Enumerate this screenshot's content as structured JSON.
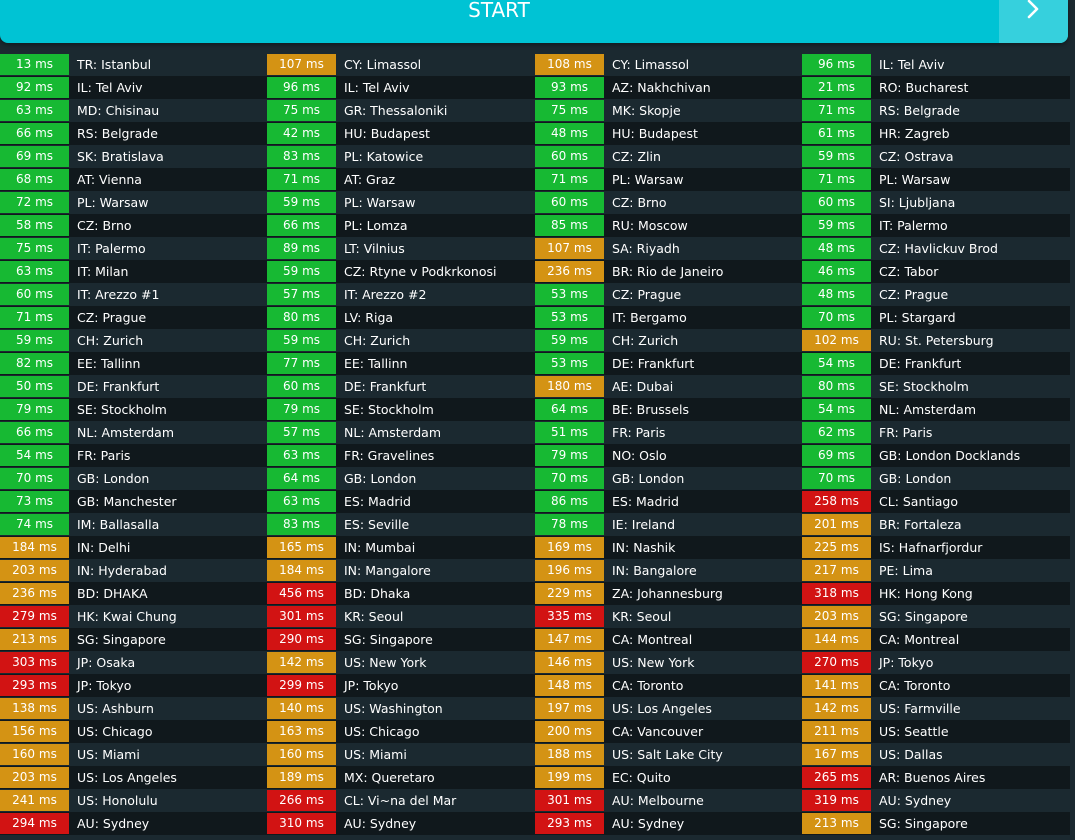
{
  "header": {
    "start_label": "START",
    "next_icon": "chevron-right-icon"
  },
  "colors": {
    "good": "#17b933",
    "medium": "#d49314",
    "bad": "#d21313",
    "accent": "#00c3d4"
  },
  "columns": [
    [
      {
        "ms": "13 ms",
        "loc": "TR: Istanbul",
        "s": "g"
      },
      {
        "ms": "92 ms",
        "loc": "IL: Tel Aviv",
        "s": "g"
      },
      {
        "ms": "63 ms",
        "loc": "MD: Chisinau",
        "s": "g"
      },
      {
        "ms": "66 ms",
        "loc": "RS: Belgrade",
        "s": "g"
      },
      {
        "ms": "69 ms",
        "loc": "SK: Bratislava",
        "s": "g"
      },
      {
        "ms": "68 ms",
        "loc": "AT: Vienna",
        "s": "g"
      },
      {
        "ms": "72 ms",
        "loc": "PL: Warsaw",
        "s": "g"
      },
      {
        "ms": "58 ms",
        "loc": "CZ: Brno",
        "s": "g"
      },
      {
        "ms": "75 ms",
        "loc": "IT: Palermo",
        "s": "g"
      },
      {
        "ms": "63 ms",
        "loc": "IT: Milan",
        "s": "g"
      },
      {
        "ms": "60 ms",
        "loc": "IT: Arezzo #1",
        "s": "g"
      },
      {
        "ms": "71 ms",
        "loc": "CZ: Prague",
        "s": "g"
      },
      {
        "ms": "59 ms",
        "loc": "CH: Zurich",
        "s": "g"
      },
      {
        "ms": "82 ms",
        "loc": "EE: Tallinn",
        "s": "g"
      },
      {
        "ms": "50 ms",
        "loc": "DE: Frankfurt",
        "s": "g"
      },
      {
        "ms": "79 ms",
        "loc": "SE: Stockholm",
        "s": "g"
      },
      {
        "ms": "66 ms",
        "loc": "NL: Amsterdam",
        "s": "g"
      },
      {
        "ms": "54 ms",
        "loc": "FR: Paris",
        "s": "g"
      },
      {
        "ms": "70 ms",
        "loc": "GB: London",
        "s": "g"
      },
      {
        "ms": "73 ms",
        "loc": "GB: Manchester",
        "s": "g"
      },
      {
        "ms": "74 ms",
        "loc": "IM: Ballasalla",
        "s": "g"
      },
      {
        "ms": "184 ms",
        "loc": "IN: Delhi",
        "s": "o"
      },
      {
        "ms": "203 ms",
        "loc": "IN: Hyderabad",
        "s": "o"
      },
      {
        "ms": "236 ms",
        "loc": "BD: DHAKA",
        "s": "o"
      },
      {
        "ms": "279 ms",
        "loc": "HK: Kwai Chung",
        "s": "r"
      },
      {
        "ms": "213 ms",
        "loc": "SG: Singapore",
        "s": "o"
      },
      {
        "ms": "303 ms",
        "loc": "JP: Osaka",
        "s": "r"
      },
      {
        "ms": "293 ms",
        "loc": "JP: Tokyo",
        "s": "r"
      },
      {
        "ms": "138 ms",
        "loc": "US: Ashburn",
        "s": "o"
      },
      {
        "ms": "156 ms",
        "loc": "US: Chicago",
        "s": "o"
      },
      {
        "ms": "160 ms",
        "loc": "US: Miami",
        "s": "o"
      },
      {
        "ms": "203 ms",
        "loc": "US: Los Angeles",
        "s": "o"
      },
      {
        "ms": "241 ms",
        "loc": "US: Honolulu",
        "s": "o"
      },
      {
        "ms": "294 ms",
        "loc": "AU: Sydney",
        "s": "r"
      }
    ],
    [
      {
        "ms": "107 ms",
        "loc": "CY: Limassol",
        "s": "o"
      },
      {
        "ms": "96 ms",
        "loc": "IL: Tel Aviv",
        "s": "g"
      },
      {
        "ms": "75 ms",
        "loc": "GR: Thessaloniki",
        "s": "g"
      },
      {
        "ms": "42 ms",
        "loc": "HU: Budapest",
        "s": "g"
      },
      {
        "ms": "83 ms",
        "loc": "PL: Katowice",
        "s": "g"
      },
      {
        "ms": "71 ms",
        "loc": "AT: Graz",
        "s": "g"
      },
      {
        "ms": "59 ms",
        "loc": "PL: Warsaw",
        "s": "g"
      },
      {
        "ms": "66 ms",
        "loc": "PL: Lomza",
        "s": "g"
      },
      {
        "ms": "89 ms",
        "loc": "LT: Vilnius",
        "s": "g"
      },
      {
        "ms": "59 ms",
        "loc": "CZ: Rtyne v Podkrkonosi",
        "s": "g"
      },
      {
        "ms": "57 ms",
        "loc": "IT: Arezzo #2",
        "s": "g"
      },
      {
        "ms": "80 ms",
        "loc": "LV: Riga",
        "s": "g"
      },
      {
        "ms": "59 ms",
        "loc": "CH: Zurich",
        "s": "g"
      },
      {
        "ms": "77 ms",
        "loc": "EE: Tallinn",
        "s": "g"
      },
      {
        "ms": "60 ms",
        "loc": "DE: Frankfurt",
        "s": "g"
      },
      {
        "ms": "79 ms",
        "loc": "SE: Stockholm",
        "s": "g"
      },
      {
        "ms": "57 ms",
        "loc": "NL: Amsterdam",
        "s": "g"
      },
      {
        "ms": "63 ms",
        "loc": "FR: Gravelines",
        "s": "g"
      },
      {
        "ms": "64 ms",
        "loc": "GB: London",
        "s": "g"
      },
      {
        "ms": "63 ms",
        "loc": "ES: Madrid",
        "s": "g"
      },
      {
        "ms": "83 ms",
        "loc": "ES: Seville",
        "s": "g"
      },
      {
        "ms": "165 ms",
        "loc": "IN: Mumbai",
        "s": "o"
      },
      {
        "ms": "184 ms",
        "loc": "IN: Mangalore",
        "s": "o"
      },
      {
        "ms": "456 ms",
        "loc": "BD: Dhaka",
        "s": "r"
      },
      {
        "ms": "301 ms",
        "loc": "KR: Seoul",
        "s": "r"
      },
      {
        "ms": "290 ms",
        "loc": "SG: Singapore",
        "s": "r"
      },
      {
        "ms": "142 ms",
        "loc": "US: New York",
        "s": "o"
      },
      {
        "ms": "299 ms",
        "loc": "JP: Tokyo",
        "s": "r"
      },
      {
        "ms": "140 ms",
        "loc": "US: Washington",
        "s": "o"
      },
      {
        "ms": "163 ms",
        "loc": "US: Chicago",
        "s": "o"
      },
      {
        "ms": "160 ms",
        "loc": "US: Miami",
        "s": "o"
      },
      {
        "ms": "189 ms",
        "loc": "MX: Queretaro",
        "s": "o"
      },
      {
        "ms": "266 ms",
        "loc": "CL: Vi~na del Mar",
        "s": "r"
      },
      {
        "ms": "310 ms",
        "loc": "AU: Sydney",
        "s": "r"
      }
    ],
    [
      {
        "ms": "108 ms",
        "loc": "CY: Limassol",
        "s": "o"
      },
      {
        "ms": "93 ms",
        "loc": "AZ: Nakhchivan",
        "s": "g"
      },
      {
        "ms": "75 ms",
        "loc": "MK: Skopje",
        "s": "g"
      },
      {
        "ms": "48 ms",
        "loc": "HU: Budapest",
        "s": "g"
      },
      {
        "ms": "60 ms",
        "loc": "CZ: Zlin",
        "s": "g"
      },
      {
        "ms": "71 ms",
        "loc": "PL: Warsaw",
        "s": "g"
      },
      {
        "ms": "60 ms",
        "loc": "CZ: Brno",
        "s": "g"
      },
      {
        "ms": "85 ms",
        "loc": "RU: Moscow",
        "s": "g"
      },
      {
        "ms": "107 ms",
        "loc": "SA: Riyadh",
        "s": "o"
      },
      {
        "ms": "236 ms",
        "loc": "BR: Rio de Janeiro",
        "s": "o"
      },
      {
        "ms": "53 ms",
        "loc": "CZ: Prague",
        "s": "g"
      },
      {
        "ms": "53 ms",
        "loc": "IT: Bergamo",
        "s": "g"
      },
      {
        "ms": "59 ms",
        "loc": "CH: Zurich",
        "s": "g"
      },
      {
        "ms": "53 ms",
        "loc": "DE: Frankfurt",
        "s": "g"
      },
      {
        "ms": "180 ms",
        "loc": "AE: Dubai",
        "s": "o"
      },
      {
        "ms": "64 ms",
        "loc": "BE: Brussels",
        "s": "g"
      },
      {
        "ms": "51 ms",
        "loc": "FR: Paris",
        "s": "g"
      },
      {
        "ms": "79 ms",
        "loc": "NO: Oslo",
        "s": "g"
      },
      {
        "ms": "70 ms",
        "loc": "GB: London",
        "s": "g"
      },
      {
        "ms": "86 ms",
        "loc": "ES: Madrid",
        "s": "g"
      },
      {
        "ms": "78 ms",
        "loc": "IE: Ireland",
        "s": "g"
      },
      {
        "ms": "169 ms",
        "loc": "IN: Nashik",
        "s": "o"
      },
      {
        "ms": "196 ms",
        "loc": "IN: Bangalore",
        "s": "o"
      },
      {
        "ms": "229 ms",
        "loc": "ZA: Johannesburg",
        "s": "o"
      },
      {
        "ms": "335 ms",
        "loc": "KR: Seoul",
        "s": "r"
      },
      {
        "ms": "147 ms",
        "loc": "CA: Montreal",
        "s": "o"
      },
      {
        "ms": "146 ms",
        "loc": "US: New York",
        "s": "o"
      },
      {
        "ms": "148 ms",
        "loc": "CA: Toronto",
        "s": "o"
      },
      {
        "ms": "197 ms",
        "loc": "US: Los Angeles",
        "s": "o"
      },
      {
        "ms": "200 ms",
        "loc": "CA: Vancouver",
        "s": "o"
      },
      {
        "ms": "188 ms",
        "loc": "US: Salt Lake City",
        "s": "o"
      },
      {
        "ms": "199 ms",
        "loc": "EC: Quito",
        "s": "o"
      },
      {
        "ms": "301 ms",
        "loc": "AU: Melbourne",
        "s": "r"
      },
      {
        "ms": "293 ms",
        "loc": "AU: Sydney",
        "s": "r"
      }
    ],
    [
      {
        "ms": "96 ms",
        "loc": "IL: Tel Aviv",
        "s": "g"
      },
      {
        "ms": "21 ms",
        "loc": "RO: Bucharest",
        "s": "g"
      },
      {
        "ms": "71 ms",
        "loc": "RS: Belgrade",
        "s": "g"
      },
      {
        "ms": "61 ms",
        "loc": "HR: Zagreb",
        "s": "g"
      },
      {
        "ms": "59 ms",
        "loc": "CZ: Ostrava",
        "s": "g"
      },
      {
        "ms": "71 ms",
        "loc": "PL: Warsaw",
        "s": "g"
      },
      {
        "ms": "60 ms",
        "loc": "SI: Ljubljana",
        "s": "g"
      },
      {
        "ms": "59 ms",
        "loc": "IT: Palermo",
        "s": "g"
      },
      {
        "ms": "48 ms",
        "loc": "CZ: Havlickuv Brod",
        "s": "g"
      },
      {
        "ms": "46 ms",
        "loc": "CZ: Tabor",
        "s": "g"
      },
      {
        "ms": "48 ms",
        "loc": "CZ: Prague",
        "s": "g"
      },
      {
        "ms": "70 ms",
        "loc": "PL: Stargard",
        "s": "g"
      },
      {
        "ms": "102 ms",
        "loc": "RU: St. Petersburg",
        "s": "o"
      },
      {
        "ms": "54 ms",
        "loc": "DE: Frankfurt",
        "s": "g"
      },
      {
        "ms": "80 ms",
        "loc": "SE: Stockholm",
        "s": "g"
      },
      {
        "ms": "54 ms",
        "loc": "NL: Amsterdam",
        "s": "g"
      },
      {
        "ms": "62 ms",
        "loc": "FR: Paris",
        "s": "g"
      },
      {
        "ms": "69 ms",
        "loc": "GB: London Docklands",
        "s": "g"
      },
      {
        "ms": "70 ms",
        "loc": "GB: London",
        "s": "g"
      },
      {
        "ms": "258 ms",
        "loc": "CL: Santiago",
        "s": "r"
      },
      {
        "ms": "201 ms",
        "loc": "BR: Fortaleza",
        "s": "o"
      },
      {
        "ms": "225 ms",
        "loc": "IS: Hafnarfjordur",
        "s": "o"
      },
      {
        "ms": "217 ms",
        "loc": "PE: Lima",
        "s": "o"
      },
      {
        "ms": "318 ms",
        "loc": "HK: Hong Kong",
        "s": "r"
      },
      {
        "ms": "203 ms",
        "loc": "SG: Singapore",
        "s": "o"
      },
      {
        "ms": "144 ms",
        "loc": "CA: Montreal",
        "s": "o"
      },
      {
        "ms": "270 ms",
        "loc": "JP: Tokyo",
        "s": "r"
      },
      {
        "ms": "141 ms",
        "loc": "CA: Toronto",
        "s": "o"
      },
      {
        "ms": "142 ms",
        "loc": "US: Farmville",
        "s": "o"
      },
      {
        "ms": "211 ms",
        "loc": "US: Seattle",
        "s": "o"
      },
      {
        "ms": "167 ms",
        "loc": "US: Dallas",
        "s": "o"
      },
      {
        "ms": "265 ms",
        "loc": "AR: Buenos Aires",
        "s": "r"
      },
      {
        "ms": "319 ms",
        "loc": "AU: Sydney",
        "s": "r"
      },
      {
        "ms": "213 ms",
        "loc": "SG: Singapore",
        "s": "o"
      }
    ]
  ]
}
